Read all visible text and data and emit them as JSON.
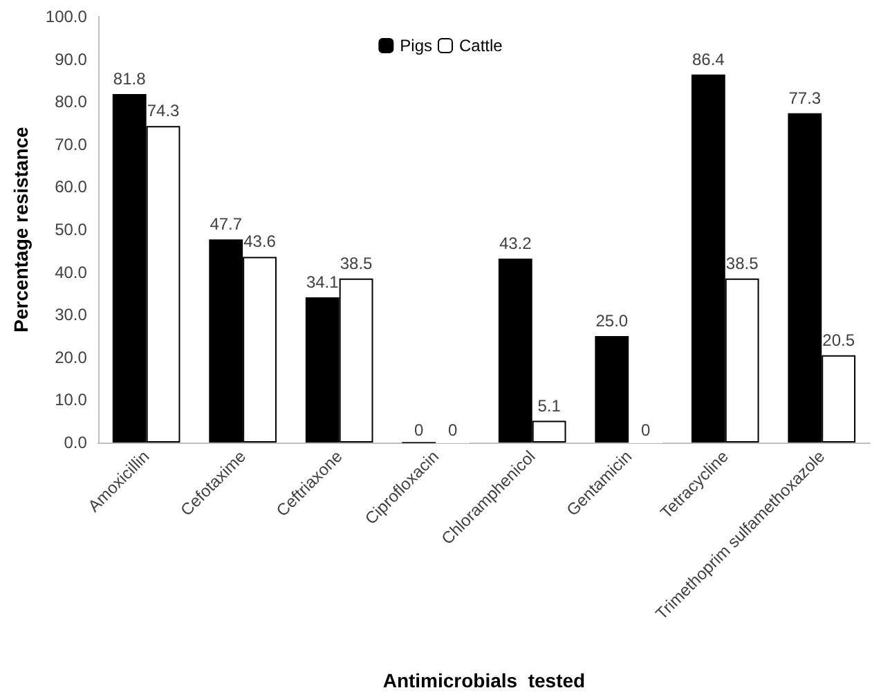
{
  "chart_data": {
    "type": "bar",
    "xlabel": "Antimicrobials  tested",
    "ylabel": "Percentage resistance",
    "categories": [
      "Amoxicillin",
      "Cefotaxime",
      "Ceftriaxone",
      "Ciprofloxacin",
      "Chloramphenicol",
      "Gentamicin",
      "Tetracycline",
      "Trimethoprim sulfamethoxazole"
    ],
    "series": [
      {
        "name": "Pigs",
        "color": "#000000",
        "values": [
          81.8,
          47.7,
          34.1,
          0,
          43.2,
          25.0,
          86.4,
          77.3
        ],
        "value_labels": [
          "81.8",
          "47.7",
          "34.1",
          "0",
          "43.2",
          "25.0",
          "86.4",
          "77.3"
        ]
      },
      {
        "name": "Cattle",
        "color": "#ffffff",
        "values": [
          74.3,
          43.6,
          38.5,
          0,
          5.1,
          0,
          38.5,
          20.5
        ],
        "value_labels": [
          "74.3",
          "43.6",
          "38.5",
          "0",
          "5.1",
          "0",
          "38.5",
          "20.5"
        ]
      }
    ],
    "ylim": [
      0,
      100
    ],
    "yticks": [
      {
        "value": 0,
        "label": "0.0"
      },
      {
        "value": 10,
        "label": "10.0"
      },
      {
        "value": 20,
        "label": "20.0"
      },
      {
        "value": 30,
        "label": "30.0"
      },
      {
        "value": 40,
        "label": "40.0"
      },
      {
        "value": 50,
        "label": "50.0"
      },
      {
        "value": 60,
        "label": "60.0"
      },
      {
        "value": 70,
        "label": "70.0"
      },
      {
        "value": 80,
        "label": "80.0"
      },
      {
        "value": 90,
        "label": "90.0"
      },
      {
        "value": 100,
        "label": "100.0"
      }
    ],
    "grid": false,
    "legend": "top"
  }
}
